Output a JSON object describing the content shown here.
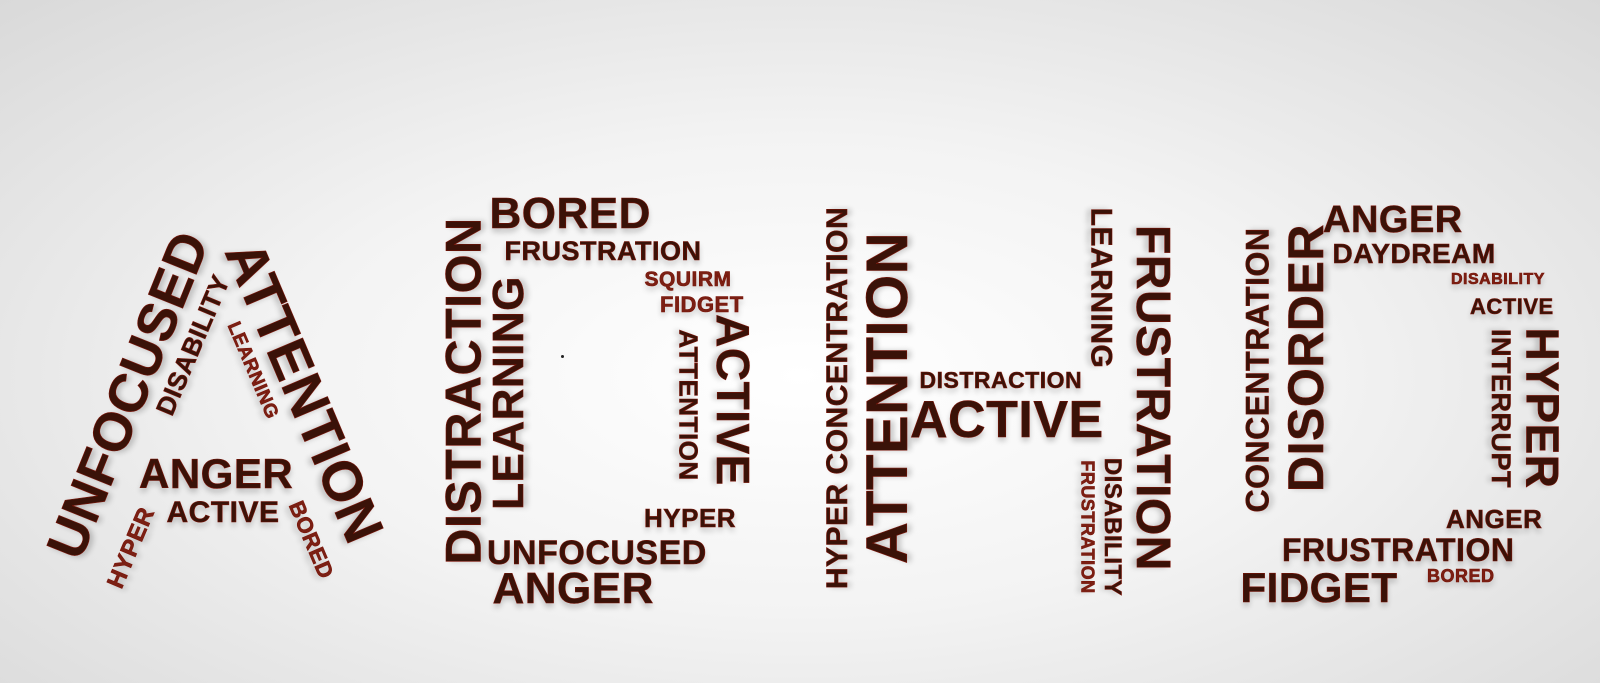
{
  "palette": {
    "text": "#3a1208",
    "outline": "#7a1206"
  },
  "letters": [
    {
      "letter": "A",
      "words": [
        "UNFOCUSED",
        "ATTENTION",
        "DISABILITY",
        "LEARNING",
        "ANGER",
        "ACTIVE",
        "HYPER",
        "BORED"
      ]
    },
    {
      "letter": "D",
      "words": [
        "DISTRACTION",
        "BORED",
        "FRUSTRATION",
        "LEARNING",
        "SQUIRM",
        "FIDGET",
        "ATTENTION",
        "ACTIVE",
        "HYPER",
        "UNFOCUSED",
        "ANGER"
      ]
    },
    {
      "letter": "H",
      "words": [
        "HYPER CONCENTRATION",
        "ATTENTION",
        "DISTRACTION",
        "ACTIVE",
        "LEARNING",
        "FRUSTRATION",
        "DISABILITY",
        "FRUSTRATION"
      ]
    },
    {
      "letter": "D",
      "words": [
        "CONCENTRATION",
        "DISORDER",
        "ANGER",
        "DAYDREAM",
        "DISABILITY",
        "ACTIVE",
        "INTERRUPT",
        "HYPER",
        "ANGER",
        "FRUSTRATION",
        "FIDGET",
        "BORED"
      ]
    }
  ]
}
